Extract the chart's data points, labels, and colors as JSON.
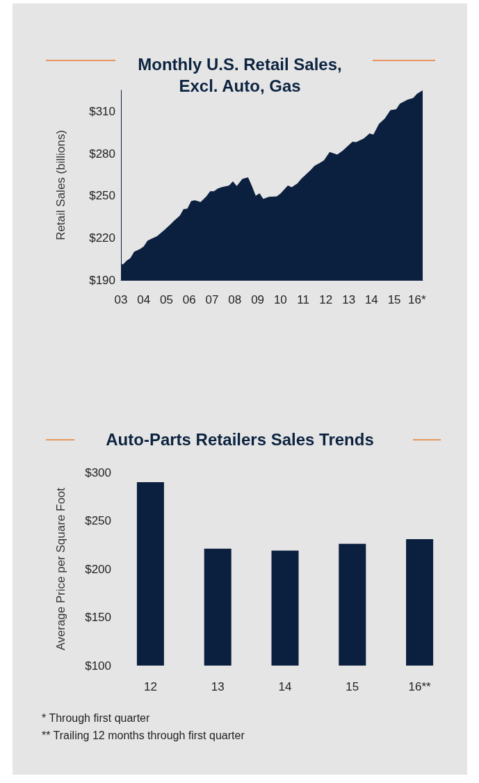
{
  "chart_data": [
    {
      "type": "area",
      "title": "Monthly U.S. Retail Sales,\nExcl. Auto, Gas",
      "ylabel": "Retail Sales (billions)",
      "color": "#0b1f3f",
      "marker": "none",
      "x": [
        "2003-01",
        "2003-02",
        "2003-04",
        "2003-06",
        "2003-08",
        "2003-11",
        "2004-01",
        "2004-03",
        "2004-05",
        "2004-08",
        "2004-12",
        "2005-03",
        "2005-05",
        "2005-08",
        "2005-10",
        "2005-12",
        "2006-02",
        "2006-04",
        "2006-07",
        "2006-10",
        "2006-12",
        "2007-02",
        "2007-04",
        "2007-06",
        "2007-10",
        "2007-12",
        "2008-02",
        "2008-05",
        "2008-08",
        "2008-10",
        "2008-12",
        "2009-02",
        "2009-04",
        "2009-07",
        "2009-11",
        "2010-01",
        "2010-05",
        "2010-07",
        "2010-10",
        "2010-12",
        "2011-05",
        "2011-07",
        "2011-10",
        "2011-12",
        "2012-03",
        "2012-07",
        "2012-10",
        "2013-03",
        "2013-05",
        "2013-09",
        "2013-12",
        "2014-02",
        "2014-05",
        "2014-08",
        "2014-11",
        "2015-02",
        "2015-04",
        "2015-08",
        "2015-11",
        "2016-01",
        "2016-04"
      ],
      "values": [
        201.9,
        201,
        203.7,
        205.6,
        210.2,
        212,
        213.8,
        218,
        219.3,
        221.1,
        225.7,
        229.4,
        232.1,
        235.8,
        240.4,
        240.8,
        246.2,
        246.8,
        245.5,
        249.5,
        253.2,
        253.2,
        255,
        256,
        257.2,
        260.2,
        256.9,
        262,
        263.1,
        256.9,
        249.9,
        251.7,
        247.7,
        249.2,
        249.5,
        251.4,
        257.2,
        256,
        258.7,
        262,
        268.2,
        271.2,
        273.4,
        275.2,
        281.1,
        279.2,
        282.2,
        288.4,
        288.1,
        290.8,
        294.4,
        293.5,
        301.2,
        304.9,
        310.9,
        311.5,
        315.5,
        318.3,
        319.5,
        322.5,
        325
      ],
      "xlim": [
        "2003-01",
        "2016-04"
      ],
      "xticks": [
        {
          "value": "2003",
          "label": "03"
        },
        {
          "value": "2004",
          "label": "04"
        },
        {
          "value": "2005",
          "label": "05"
        },
        {
          "value": "2006",
          "label": "06"
        },
        {
          "value": "2007",
          "label": "07"
        },
        {
          "value": "2008",
          "label": "08"
        },
        {
          "value": "2009",
          "label": "09"
        },
        {
          "value": "2010",
          "label": "10"
        },
        {
          "value": "2011",
          "label": "11"
        },
        {
          "value": "2012",
          "label": "12"
        },
        {
          "value": "2013",
          "label": "13"
        },
        {
          "value": "2014",
          "label": "14"
        },
        {
          "value": "2015",
          "label": "15"
        },
        {
          "value": "2016",
          "label": "16*"
        }
      ],
      "ylim": [
        190,
        325
      ],
      "yticks": [
        {
          "value": 190,
          "label": "$190"
        },
        {
          "value": 220,
          "label": "$220"
        },
        {
          "value": 250,
          "label": "$250"
        },
        {
          "value": 280,
          "label": "$280"
        },
        {
          "value": 310,
          "label": "$310"
        }
      ]
    },
    {
      "type": "bar",
      "title": "Auto-Parts Retailers Sales Trends",
      "ylabel": "Average Price per Square Foot",
      "color": "#0b1f3f",
      "categories": [
        "12",
        "13",
        "14",
        "15",
        "16**"
      ],
      "values": [
        290,
        221,
        219,
        226,
        231
      ],
      "ylim": [
        100,
        300
      ],
      "yticks": [
        {
          "value": 100,
          "label": "$100"
        },
        {
          "value": 150,
          "label": "$150"
        },
        {
          "value": 200,
          "label": "$200"
        },
        {
          "value": 250,
          "label": "$250"
        },
        {
          "value": 300,
          "label": "$300"
        }
      ],
      "annotations": [
        "* Through first quarter",
        "** Trailing 12 months through first quarter"
      ]
    }
  ]
}
